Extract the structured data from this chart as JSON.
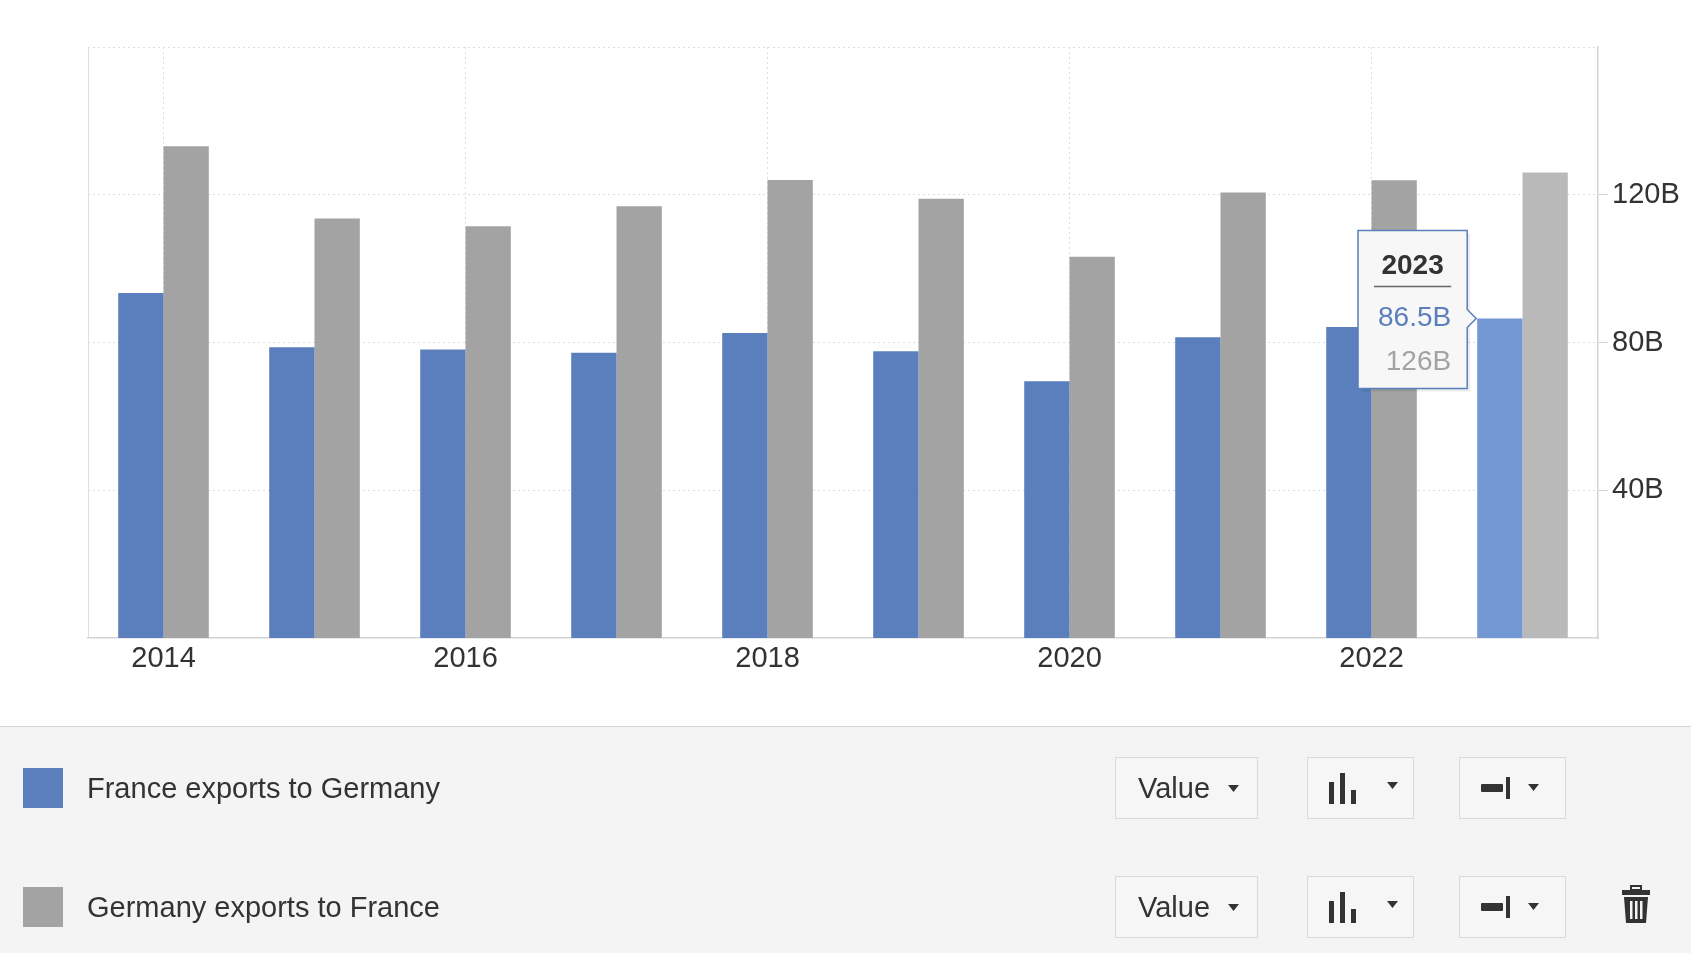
{
  "chart_data": {
    "type": "bar",
    "categories": [
      "2014",
      null,
      "2016",
      null,
      "2018",
      null,
      "2020",
      null,
      "2022",
      null
    ],
    "series": [
      {
        "name": "France exports to Germany",
        "color": "#5b7fbc",
        "colors": [
          "#5b7fbc",
          "#5b7fbc",
          "#5b7fbc",
          "#5b7fbc",
          "#5b7fbc",
          "#5b7fbc",
          "#5b7fbc",
          "#5b7fbc",
          "#5b7fbc",
          "#7498d3"
        ],
        "values": [
          93.4,
          78.7,
          78.1,
          77.2,
          82.6,
          77.6,
          69.5,
          81.4,
          84.2,
          86.5
        ]
      },
      {
        "name": "Germany exports to France",
        "color": "#a3a3a3",
        "colors": [
          "#a3a3a3",
          "#a3a3a3",
          "#a3a3a3",
          "#a3a3a3",
          "#a3a3a3",
          "#a3a3a3",
          "#a3a3a3",
          "#a3a3a3",
          "#a3a3a3",
          "#b9b9b9"
        ],
        "values": [
          133.1,
          113.6,
          111.5,
          116.9,
          124.0,
          118.9,
          103.2,
          120.6,
          123.9,
          126
        ]
      }
    ],
    "ylim": [
      0,
      160
    ],
    "yticks": [
      {
        "value": 40,
        "label": "40B"
      },
      {
        "value": 80,
        "label": "80B"
      },
      {
        "value": 120,
        "label": "120B"
      }
    ],
    "grid": true,
    "legend": "bottom",
    "annotations": [
      "2023",
      {
        "text": "86.5B",
        "y": 86.5
      },
      "126B",
      "Value",
      "Value"
    ]
  }
}
